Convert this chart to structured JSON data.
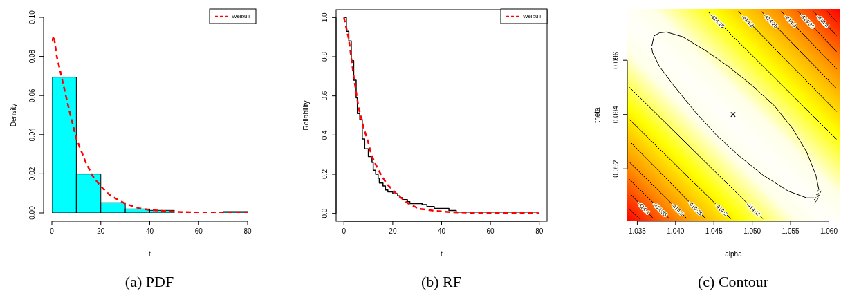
{
  "chart_data": [
    {
      "type": "histogram",
      "title": "(a) PDF",
      "xlabel": "t",
      "ylabel": "Density",
      "bins": [
        0,
        10,
        20,
        30,
        40,
        50,
        60,
        70,
        80
      ],
      "values": [
        0.0694,
        0.0199,
        0.0052,
        0.002,
        0.0013,
        0,
        0,
        0.0007
      ],
      "color": "#00ffff",
      "series": [
        {
          "type": "line",
          "name": "Weibull",
          "color": "#ff0000",
          "line_style": "dashed",
          "x": [
            0,
            0.8,
            2,
            3.9,
            5.5,
            7.2,
            10,
            13.8,
            16.6,
            20,
            24,
            30,
            35.5,
            40,
            50,
            60,
            70,
            80
          ],
          "values": [
            0.0876,
            0.0905,
            0.08,
            0.07,
            0.061,
            0.052,
            0.038,
            0.026,
            0.019,
            0.0135,
            0.0088,
            0.0047,
            0.0024,
            0.0015,
            0.0006,
            0.0002,
            0.0001,
            0.0001
          ]
        }
      ],
      "xlim": [
        0,
        80
      ],
      "ylim": [
        0,
        0.1
      ],
      "xticks": [
        0,
        20,
        40,
        60,
        80
      ],
      "yticks": [
        {
          "value": 0,
          "label": "0.00"
        },
        {
          "value": 0.02,
          "label": "0.02"
        },
        {
          "value": 0.04,
          "label": "0.04"
        },
        {
          "value": 0.06,
          "label": "0.06"
        },
        {
          "value": 0.08,
          "label": "0.08"
        },
        {
          "value": 0.1,
          "label": "0.10"
        }
      ],
      "legend": "top right"
    },
    {
      "type": "step",
      "title": "(b) RF",
      "xlabel": "t",
      "ylabel": "Reliability",
      "series": [
        {
          "color": "#000000",
          "x": [
            0,
            1,
            2,
            3,
            4,
            5,
            5.5,
            6.5,
            7.5,
            8.5,
            10,
            11.5,
            12,
            13,
            14,
            14.5,
            16,
            17,
            18,
            20,
            22,
            23,
            24,
            26,
            27,
            32,
            34,
            37,
            43,
            46,
            79
          ],
          "values": [
            1.0,
            0.93,
            0.88,
            0.78,
            0.68,
            0.59,
            0.51,
            0.48,
            0.38,
            0.33,
            0.29,
            0.26,
            0.22,
            0.2,
            0.18,
            0.155,
            0.14,
            0.12,
            0.11,
            0.1,
            0.09,
            0.08,
            0.07,
            0.06,
            0.05,
            0.045,
            0.035,
            0.025,
            0.015,
            0.007,
            0.007
          ]
        },
        {
          "type": "line",
          "name": "Weibull",
          "color": "#ff0000",
          "line_style": "dashed",
          "x": [
            0,
            2,
            4,
            6,
            8,
            10,
            11.2,
            13,
            15.3,
            17.7,
            20,
            21.9,
            26,
            30.7,
            38,
            44.6,
            50,
            60,
            80
          ],
          "values": [
            1.0,
            0.89,
            0.7,
            0.54,
            0.44,
            0.36,
            0.3,
            0.25,
            0.195,
            0.148,
            0.12,
            0.095,
            0.053,
            0.024,
            0.012,
            0.006,
            0.004,
            0.002,
            0.001
          ]
        }
      ],
      "xlim": [
        -3.2,
        83.2
      ],
      "ylim": [
        -0.04,
        1.04
      ],
      "xticks": [
        0,
        20,
        40,
        60,
        80
      ],
      "yticks": [
        {
          "value": 0,
          "label": "0.0"
        },
        {
          "value": 0.2,
          "label": "0.2"
        },
        {
          "value": 0.4,
          "label": "0.4"
        },
        {
          "value": 0.6,
          "label": "0.6"
        },
        {
          "value": 0.8,
          "label": "0.8"
        },
        {
          "value": 1,
          "label": "1.0"
        }
      ],
      "legend": "top right"
    },
    {
      "type": "line",
      "title": "(c) Contour",
      "xlabel": "alpha",
      "ylabel": "theta",
      "series": [
        {
          "name": "-414.1",
          "color": "#000000",
          "x": [
            1.0587,
            1.0584,
            1.0571,
            1.0547,
            1.0514,
            1.0484,
            1.0454,
            1.0424,
            1.0397,
            1.0379,
            1.037,
            1.0369
          ],
          "values": [
            0.09114,
            0.09093,
            0.09093,
            0.09118,
            0.09177,
            0.09245,
            0.09322,
            0.09415,
            0.09509,
            0.09577,
            0.09628,
            0.09645
          ]
        },
        {
          "color": "#000000",
          "x": [
            1.0369,
            1.0372,
            1.0379,
            1.0388,
            1.0409,
            1.0439,
            1.0469,
            1.0499,
            1.0529,
            1.0553,
            1.0571,
            1.0583,
            1.0587
          ],
          "values": [
            0.09653,
            0.0969,
            0.09701,
            0.09704,
            0.09687,
            0.09636,
            0.09577,
            0.09509,
            0.09432,
            0.09347,
            0.09262,
            0.09177,
            0.09122
          ]
        },
        {
          "name": "-414.15",
          "color": "#000000",
          "x": [
            1.0442,
            1.061
          ],
          "values": [
            0.0978,
            0.09309
          ]
        },
        {
          "name": "-414.2",
          "color": "#000000",
          "x": [
            1.0482,
            1.061
          ],
          "values": [
            0.0978,
            0.09411
          ]
        },
        {
          "name": "-414.25",
          "color": "#000000",
          "x": [
            1.0512,
            1.061
          ],
          "values": [
            0.0978,
            0.09496
          ]
        },
        {
          "name": "-414.3",
          "color": "#000000",
          "x": [
            1.0538,
            1.061
          ],
          "values": [
            0.0978,
            0.09568
          ]
        },
        {
          "name": "-414.35",
          "color": "#000000",
          "x": [
            1.056,
            1.061
          ],
          "values": [
            0.0978,
            0.09632
          ]
        },
        {
          "name": "-414.4",
          "color": "#000000",
          "x": [
            1.058,
            1.061
          ],
          "values": [
            0.0978,
            0.09691
          ]
        },
        {
          "color": "#000000",
          "x": [
            1.0598,
            1.061
          ],
          "values": [
            0.0978,
            0.09742
          ]
        },
        {
          "name": "-414.15",
          "color": "#000000",
          "x": [
            1.0514,
            1.034
          ],
          "values": [
            0.09016,
            0.095
          ]
        },
        {
          "name": "-414.2",
          "color": "#000000",
          "x": [
            1.0472,
            1.034
          ],
          "values": [
            0.09016,
            0.09381
          ]
        },
        {
          "name": "-414.25",
          "color": "#000000",
          "x": [
            1.0438,
            1.0342
          ],
          "values": [
            0.0902,
            0.09296
          ]
        },
        {
          "name": "-414.3",
          "color": "#000000",
          "x": [
            1.0415,
            1.034
          ],
          "values": [
            0.09016,
            0.09224
          ]
        },
        {
          "name": "-414.35",
          "color": "#000000",
          "x": [
            1.0392,
            1.034
          ],
          "values": [
            0.09016,
            0.09161
          ]
        },
        {
          "name": "-414.4",
          "color": "#000000",
          "x": [
            1.037,
            1.0342
          ],
          "values": [
            0.0902,
            0.09105
          ]
        },
        {
          "color": "#000000",
          "x": [
            1.0353,
            1.034
          ],
          "values": [
            0.09016,
            0.0905
          ]
        },
        {
          "type": "scatter",
          "marker": "cross",
          "color": "#000000",
          "x": [
            1.0475
          ],
          "values": [
            0.094
          ]
        }
      ],
      "xlim": [
        1.0337,
        1.0614
      ],
      "ylim": [
        0.09007,
        0.09789
      ],
      "xticks": [
        {
          "value": 1.035,
          "label": "1.035"
        },
        {
          "value": 1.04,
          "label": "1.040"
        },
        {
          "value": 1.045,
          "label": "1.045"
        },
        {
          "value": 1.05,
          "label": "1.050"
        },
        {
          "value": 1.055,
          "label": "1.055"
        },
        {
          "value": 1.06,
          "label": "1.060"
        }
      ],
      "yticks": [
        0.092,
        0.094,
        0.096
      ]
    }
  ]
}
